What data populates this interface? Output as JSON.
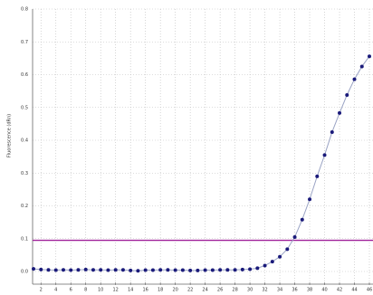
{
  "chart_data": {
    "type": "line",
    "y_label": "Fluorescence (dRn)",
    "x": [
      1,
      2,
      3,
      4,
      5,
      6,
      7,
      8,
      9,
      10,
      11,
      12,
      13,
      14,
      15,
      16,
      17,
      18,
      19,
      20,
      21,
      22,
      23,
      24,
      25,
      26,
      27,
      28,
      29,
      30,
      31,
      32,
      33,
      34,
      35,
      36,
      37,
      38,
      39,
      40,
      41,
      42,
      43,
      44,
      45,
      46
    ],
    "series": [
      {
        "color": "#1a1a7a",
        "line_color": "#9aa3c4",
        "values": [
          0.008,
          0.006,
          0.005,
          0.004,
          0.005,
          0.004,
          0.005,
          0.006,
          0.005,
          0.005,
          0.004,
          0.005,
          0.005,
          0.003,
          0.002,
          0.004,
          0.004,
          0.005,
          0.005,
          0.004,
          0.004,
          0.003,
          0.003,
          0.004,
          0.004,
          0.005,
          0.005,
          0.005,
          0.006,
          0.007,
          0.01,
          0.018,
          0.03,
          0.045,
          0.068,
          0.105,
          0.158,
          0.22,
          0.29,
          0.355,
          0.425,
          0.483,
          0.538,
          0.586,
          0.625,
          0.656
        ]
      }
    ],
    "threshold": 0.095,
    "threshold_color": "#a0209a",
    "xlim": [
      1,
      46
    ],
    "ylim": [
      0,
      0.8
    ],
    "xticks": [
      2,
      4,
      6,
      8,
      10,
      12,
      14,
      16,
      18,
      20,
      22,
      24,
      26,
      28,
      30,
      32,
      34,
      36,
      38,
      40,
      42,
      44,
      46
    ],
    "yticks": [
      {
        "value": 0,
        "label": "0.0"
      },
      0.1,
      0.2,
      0.3,
      0.4,
      0.5,
      0.6,
      0.7,
      0.8
    ],
    "grid": true
  }
}
